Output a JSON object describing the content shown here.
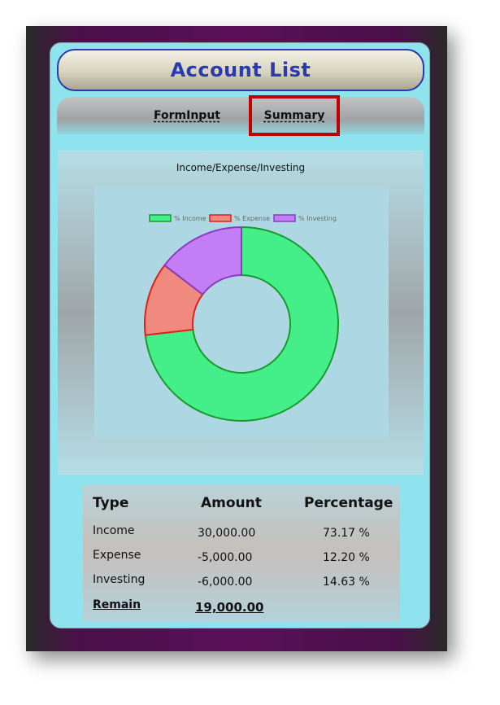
{
  "header": {
    "title": "Account List"
  },
  "tabs": [
    {
      "label": "FormInput",
      "selected": false
    },
    {
      "label": "Summary",
      "selected": true
    }
  ],
  "colors": {
    "highlight_border": "#c00000",
    "title_text": "#2b3ab0",
    "income": "#44ee88",
    "expense": "#f08a7e",
    "investing": "#c37ef5"
  },
  "chart_data": {
    "type": "pie",
    "variant": "doughnut",
    "title": "Income/Expense/Investing",
    "legend_position": "top",
    "categories": [
      "% Income",
      "% Expense",
      "% Investing"
    ],
    "values": [
      73.17,
      12.2,
      14.63
    ],
    "colors": [
      "#44ee88",
      "#f08a7e",
      "#c37ef5"
    ],
    "border_colors": [
      "#1a9a2a",
      "#e0201a",
      "#8b3ac0"
    ]
  },
  "table": {
    "headers": [
      "Type",
      "Amount",
      "Percentage"
    ],
    "rows": [
      {
        "type": "Income",
        "amount": "30,000.00",
        "percentage": "73.17 %"
      },
      {
        "type": "Expense",
        "amount": "-5,000.00",
        "percentage": "12.20 %"
      },
      {
        "type": "Investing",
        "amount": "-6,000.00",
        "percentage": "14.63 %"
      }
    ],
    "remain_label": "Remain",
    "remain_value": "19,000.00"
  }
}
